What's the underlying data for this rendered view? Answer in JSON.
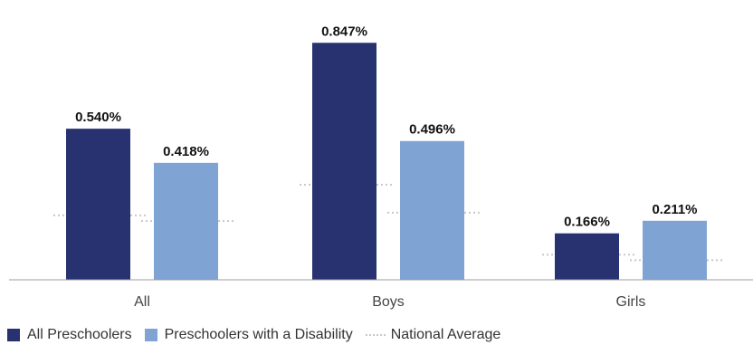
{
  "chart_data": {
    "type": "bar",
    "categories": [
      "All",
      "Boys",
      "Girls"
    ],
    "series": [
      {
        "name": "All Preschoolers",
        "values": [
          0.54,
          0.847,
          0.166
        ],
        "labels": [
          "0.540%",
          "0.847%",
          "0.166%"
        ],
        "color": "#283270"
      },
      {
        "name": "Preschoolers with a Disability",
        "values": [
          0.418,
          0.496,
          0.211
        ],
        "labels": [
          "0.418%",
          "0.496%",
          "0.211%"
        ],
        "color": "#7fa3d3"
      }
    ],
    "reference": {
      "name": "National Average",
      "all_preschoolers": [
        0.23,
        0.34,
        0.09
      ],
      "preschoolers_with_disability": [
        0.21,
        0.24,
        0.07
      ],
      "color": "#c8c8c8"
    },
    "ylim": [
      0,
      1.0
    ],
    "grid": false,
    "legend_position": "bottom-left"
  },
  "legend": {
    "items": [
      {
        "label": "All Preschoolers",
        "color": "#283270"
      },
      {
        "label": "Preschoolers with a Disability",
        "color": "#7fa3d3"
      },
      {
        "label": "National Average",
        "color": "#c8c8c8"
      }
    ]
  }
}
